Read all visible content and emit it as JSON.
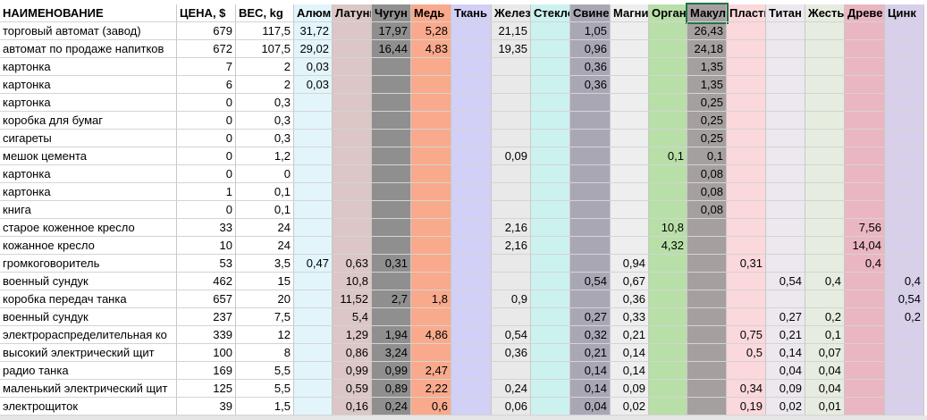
{
  "table": {
    "header": [
      "НАИМЕНОВАНИЕ",
      "ЦЕНА, $",
      "ВЕС, kg",
      "Алюм",
      "Латунь",
      "Чугун",
      "Медь",
      "Ткань",
      "Желез",
      "Стекло",
      "Свинец",
      "Магни",
      "Орган",
      "Макул",
      "Пласти",
      "Титан",
      "Жесть",
      "Древе",
      "Цинк"
    ],
    "rows": [
      [
        "торговый автомат (завод)",
        "679",
        "117,5",
        "31,72",
        null,
        "17,97",
        "5,28",
        null,
        "21,15",
        null,
        "1,05",
        null,
        null,
        "26,43",
        null,
        null,
        null,
        null,
        null
      ],
      [
        "автомат по продаже напитков",
        "672",
        "107,5",
        "29,02",
        null,
        "16,44",
        "4,83",
        null,
        "19,35",
        null,
        "0,96",
        null,
        null,
        "24,18",
        null,
        null,
        null,
        null,
        null
      ],
      [
        "картонка",
        "7",
        "2",
        "0,03",
        null,
        null,
        null,
        null,
        null,
        null,
        "0,36",
        null,
        null,
        "1,35",
        null,
        null,
        null,
        null,
        null
      ],
      [
        "картонка",
        "6",
        "2",
        "0,03",
        null,
        null,
        null,
        null,
        null,
        null,
        "0,36",
        null,
        null,
        "1,35",
        null,
        null,
        null,
        null,
        null
      ],
      [
        "картонка",
        "0",
        "0,3",
        null,
        null,
        null,
        null,
        null,
        null,
        null,
        null,
        null,
        null,
        "0,25",
        null,
        null,
        null,
        null,
        null
      ],
      [
        "коробка для бумаг",
        "0",
        "0,3",
        null,
        null,
        null,
        null,
        null,
        null,
        null,
        null,
        null,
        null,
        "0,25",
        null,
        null,
        null,
        null,
        null
      ],
      [
        "сигареты",
        "0",
        "0,3",
        null,
        null,
        null,
        null,
        null,
        null,
        null,
        null,
        null,
        null,
        "0,25",
        null,
        null,
        null,
        null,
        null
      ],
      [
        "мешок цемента",
        "0",
        "1,2",
        null,
        null,
        null,
        null,
        null,
        "0,09",
        null,
        null,
        null,
        "0,1",
        "0,1",
        null,
        null,
        null,
        null,
        null
      ],
      [
        "картонка",
        "0",
        "0",
        null,
        null,
        null,
        null,
        null,
        null,
        null,
        null,
        null,
        null,
        "0,08",
        null,
        null,
        null,
        null,
        null
      ],
      [
        "картонка",
        "1",
        "0,1",
        null,
        null,
        null,
        null,
        null,
        null,
        null,
        null,
        null,
        null,
        "0,08",
        null,
        null,
        null,
        null,
        null
      ],
      [
        "книга",
        "0",
        "0,1",
        null,
        null,
        null,
        null,
        null,
        null,
        null,
        null,
        null,
        null,
        "0,08",
        null,
        null,
        null,
        null,
        null
      ],
      [
        "старое коженное кресло",
        "33",
        "24",
        null,
        null,
        null,
        null,
        null,
        "2,16",
        null,
        null,
        null,
        "10,8",
        null,
        null,
        null,
        null,
        "7,56",
        null
      ],
      [
        "кожанное кресло",
        "10",
        "24",
        null,
        null,
        null,
        null,
        null,
        "2,16",
        null,
        null,
        null,
        "4,32",
        null,
        null,
        null,
        null,
        "14,04",
        null
      ],
      [
        "громкоговоритель",
        "53",
        "3,5",
        "0,47",
        "0,63",
        "0,31",
        null,
        null,
        null,
        null,
        null,
        "0,94",
        null,
        null,
        "0,31",
        null,
        null,
        "0,4",
        null
      ],
      [
        "военный сундук",
        "462",
        "15",
        null,
        "10,8",
        null,
        null,
        null,
        null,
        null,
        "0,54",
        "0,67",
        null,
        null,
        null,
        "0,54",
        "0,4",
        null,
        "0,4"
      ],
      [
        "коробка передач танка",
        "657",
        "20",
        null,
        "11,52",
        "2,7",
        "1,8",
        null,
        "0,9",
        null,
        null,
        "0,36",
        null,
        null,
        null,
        null,
        null,
        null,
        "0,54"
      ],
      [
        "военный сундук",
        "237",
        "7,5",
        null,
        "5,4",
        null,
        null,
        null,
        null,
        null,
        "0,27",
        "0,33",
        null,
        null,
        null,
        "0,27",
        "0,2",
        null,
        "0,2"
      ],
      [
        "электрораспределительная ко",
        "339",
        "12",
        null,
        "1,29",
        "1,94",
        "4,86",
        null,
        "0,54",
        null,
        "0,32",
        "0,21",
        null,
        null,
        "0,75",
        "0,21",
        "0,1",
        null,
        null
      ],
      [
        "высокий электрический щит",
        "100",
        "8",
        null,
        "0,86",
        "3,24",
        null,
        null,
        "0,36",
        null,
        "0,21",
        "0,14",
        null,
        null,
        "0,5",
        "0,14",
        "0,07",
        null,
        null
      ],
      [
        "радио танка",
        "169",
        "5,5",
        null,
        "0,99",
        "0,99",
        "2,47",
        null,
        null,
        null,
        "0,14",
        "0,14",
        null,
        null,
        null,
        "0,04",
        "0,04",
        null,
        null
      ],
      [
        "маленький электрический щит",
        "125",
        "5,5",
        null,
        "0,59",
        "0,89",
        "2,22",
        null,
        "0,24",
        null,
        "0,14",
        "0,09",
        null,
        null,
        "0,34",
        "0,09",
        "0,04",
        null,
        null
      ],
      [
        "электрощиток",
        "39",
        "1,5",
        null,
        "0,16",
        "0,24",
        "0,6",
        null,
        "0,06",
        null,
        "0,04",
        "0,02",
        null,
        null,
        "0,19",
        "0,02",
        "0,01",
        null,
        null
      ]
    ]
  }
}
